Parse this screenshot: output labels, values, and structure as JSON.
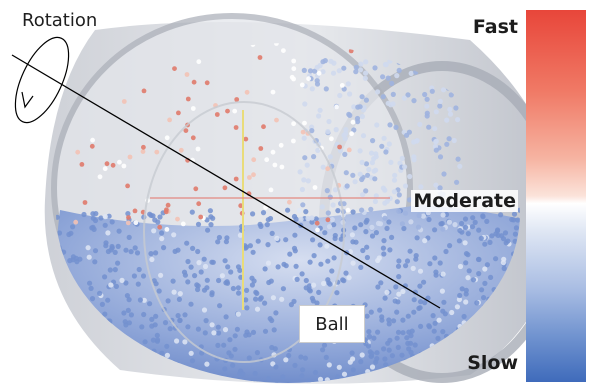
{
  "labels": {
    "rotation": "Rotation",
    "ball": "Ball"
  },
  "colorbar": {
    "top_label": "Fast",
    "middle_label": "Moderate",
    "bottom_label": "Slow",
    "colors": [
      "#e8463a",
      "#ffffff",
      "#3f6bbb"
    ]
  }
}
